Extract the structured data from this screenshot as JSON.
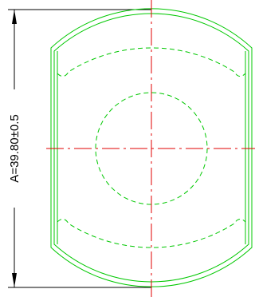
{
  "dimension": {
    "label": "A=39.80±0.5"
  },
  "colors": {
    "background": "#ffffff",
    "part_outline": "#00c800",
    "hidden_line": "#00c800",
    "center_line": "#e00000",
    "dimension_line": "#000000"
  }
}
